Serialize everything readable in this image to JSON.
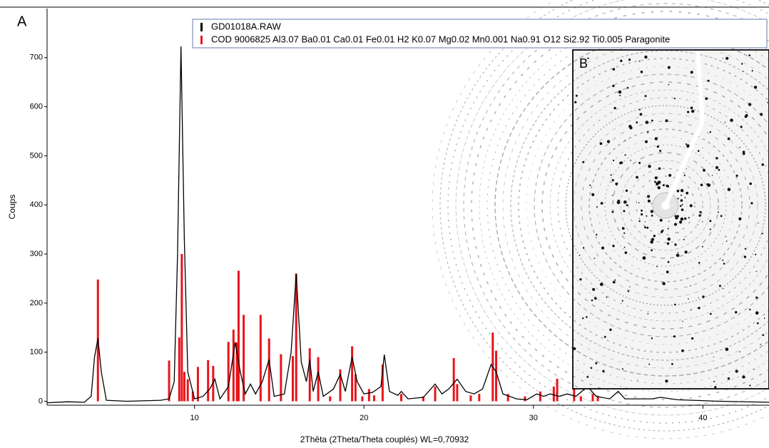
{
  "chart_data": {
    "type": "line",
    "panel_label": "A",
    "inset_label": "B",
    "xlabel": "2Thêta (2Theta/Theta couplés) WL=0,70932",
    "ylabel": "Coups",
    "xlim": [
      1.3,
      43.9
    ],
    "ylim": [
      -8,
      800
    ],
    "xticks": [
      10,
      20,
      30,
      40
    ],
    "yticks": [
      0,
      100,
      200,
      300,
      400,
      500,
      600,
      700
    ],
    "series": [
      {
        "name": "GD01018A.RAW",
        "color": "#000000",
        "style": "line",
        "x": [
          1.3,
          2.5,
          3.5,
          3.9,
          4.1,
          4.3,
          4.5,
          4.8,
          6.0,
          8.0,
          8.5,
          8.8,
          9.0,
          9.2,
          9.4,
          9.6,
          10.0,
          10.5,
          10.9,
          11.2,
          11.5,
          12.0,
          12.4,
          12.7,
          13.0,
          13.3,
          13.6,
          14.0,
          14.4,
          14.7,
          15.3,
          15.7,
          16.0,
          16.3,
          16.6,
          16.8,
          17.0,
          17.3,
          17.6,
          18.2,
          18.6,
          18.9,
          19.3,
          19.6,
          20.0,
          20.5,
          21.0,
          21.2,
          21.5,
          22.0,
          22.2,
          22.6,
          23.5,
          24.2,
          24.6,
          25.0,
          25.5,
          26.0,
          26.5,
          27.0,
          27.5,
          27.8,
          28.2,
          29.0,
          29.6,
          30.2,
          30.6,
          31.0,
          31.5,
          32.0,
          32.5,
          33.2,
          33.7,
          34.5,
          35.0,
          35.4,
          37.0,
          37.5,
          38.5,
          41.0,
          43.9
        ],
        "values": [
          -3,
          -1,
          -2,
          10,
          90,
          128,
          60,
          2,
          0,
          2,
          5,
          40,
          300,
          723,
          330,
          60,
          5,
          10,
          25,
          45,
          5,
          30,
          120,
          60,
          15,
          35,
          15,
          40,
          85,
          10,
          15,
          100,
          260,
          80,
          40,
          85,
          20,
          60,
          10,
          25,
          55,
          20,
          90,
          40,
          15,
          18,
          30,
          95,
          20,
          12,
          20,
          5,
          8,
          35,
          15,
          25,
          45,
          20,
          15,
          25,
          75,
          60,
          15,
          5,
          3,
          15,
          10,
          15,
          10,
          15,
          10,
          30,
          10,
          5,
          20,
          5,
          5,
          8,
          3,
          0,
          -2
        ]
      },
      {
        "name": "COD 9006825 Al3.07 Ba0.01 Ca0.01 Fe0.01 H2 K0.07 Mg0.02 Mn0.001 Na0.91 O12 Si2.92 Ti0.005 Paragonite",
        "color": "#e8141c",
        "style": "sticks",
        "x": [
          4.3,
          8.5,
          9.1,
          9.25,
          9.4,
          9.6,
          9.9,
          10.2,
          10.8,
          11.1,
          12.0,
          12.3,
          12.5,
          12.6,
          12.9,
          13.9,
          14.4,
          15.1,
          15.8,
          16.0,
          16.8,
          17.3,
          18.0,
          18.6,
          19.3,
          19.5,
          19.9,
          20.3,
          20.6,
          21.1,
          22.2,
          23.5,
          24.2,
          25.3,
          25.5,
          26.3,
          26.8,
          27.6,
          27.8,
          28.5,
          29.5,
          30.4,
          31.2,
          31.4,
          32.4,
          32.8,
          33.5,
          33.8
        ],
        "values": [
          248,
          83,
          130,
          300,
          60,
          45,
          20,
          70,
          84,
          72,
          121,
          146,
          120,
          266,
          176,
          176,
          128,
          96,
          92,
          260,
          108,
          90,
          10,
          65,
          112,
          55,
          10,
          25,
          12,
          75,
          15,
          10,
          30,
          88,
          35,
          12,
          15,
          140,
          103,
          15,
          10,
          20,
          30,
          46,
          30,
          10,
          15,
          10
        ]
      }
    ]
  }
}
